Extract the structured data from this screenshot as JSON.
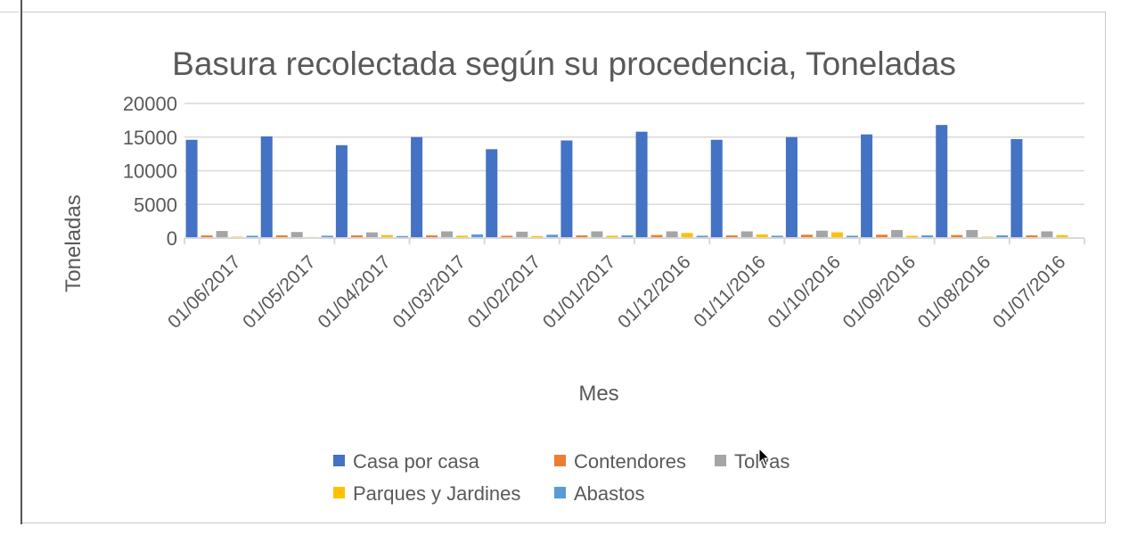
{
  "chart_data": {
    "type": "bar",
    "title": "Basura recolectada según su procedencia, Toneladas",
    "xlabel": "Mes",
    "ylabel": "Toneladas",
    "ylim": [
      0,
      20000
    ],
    "yticks": [
      0,
      5000,
      10000,
      15000,
      20000
    ],
    "grid": true,
    "legend_position": "bottom",
    "categories": [
      "01/06/2017",
      "01/05/2017",
      "01/04/2017",
      "01/03/2017",
      "01/02/2017",
      "01/01/2017",
      "01/12/2016",
      "01/11/2016",
      "01/10/2016",
      "01/09/2016",
      "01/08/2016",
      "01/07/2016"
    ],
    "series": [
      {
        "name": "Casa por casa",
        "color": "#4472C4",
        "values": [
          14600,
          15100,
          13800,
          15000,
          13200,
          14500,
          15800,
          14600,
          15000,
          15400,
          16800,
          14700
        ]
      },
      {
        "name": "Contendores",
        "color": "#ED7D31",
        "values": [
          400,
          400,
          400,
          400,
          350,
          400,
          450,
          400,
          500,
          500,
          450,
          400
        ]
      },
      {
        "name": "Tolvas",
        "color": "#A5A5A5",
        "values": [
          1050,
          900,
          850,
          1000,
          950,
          1000,
          1000,
          1000,
          1100,
          1200,
          1200,
          1000
        ]
      },
      {
        "name": "Parques y Jardines",
        "color": "#FFC000",
        "values": [
          200,
          150,
          450,
          350,
          300,
          350,
          750,
          550,
          850,
          350,
          200,
          450
        ]
      },
      {
        "name": "Abastos",
        "color": "#5B9BD5",
        "values": [
          350,
          350,
          300,
          550,
          500,
          400,
          350,
          350,
          350,
          400,
          400,
          0
        ]
      }
    ]
  }
}
